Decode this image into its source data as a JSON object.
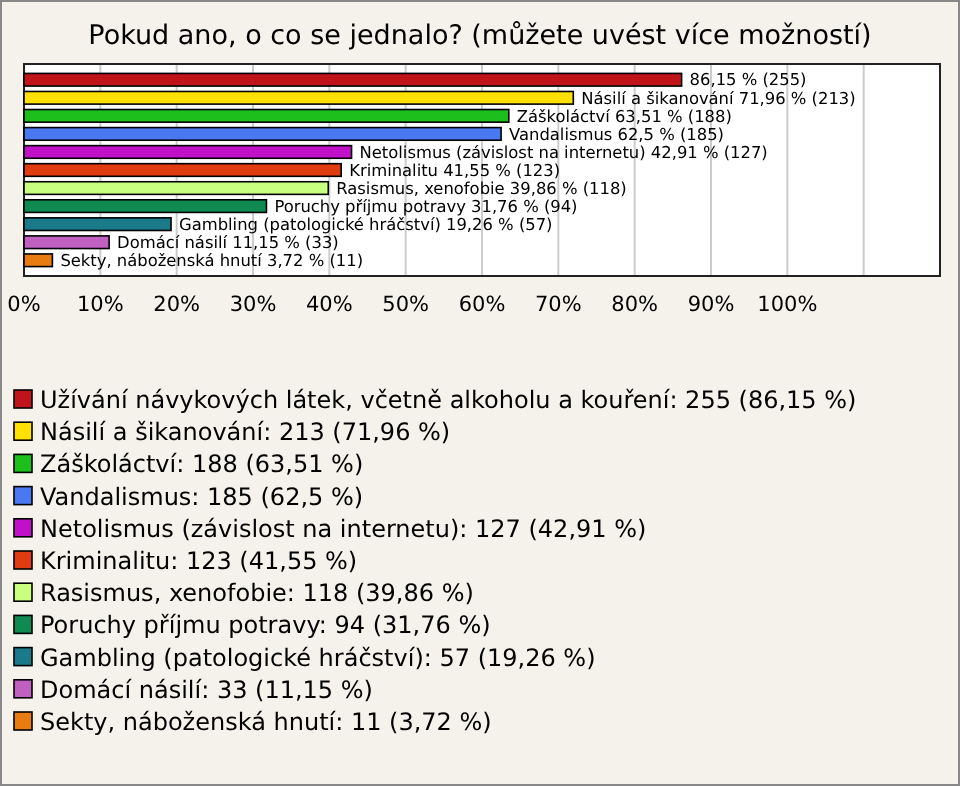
{
  "chart_data": {
    "type": "bar",
    "orientation": "horizontal",
    "stacked": true,
    "title": "Pokud ano, o co se jednalo? (můžete uvést více možností)",
    "categories": [
      null,
      null,
      null,
      null,
      null,
      null,
      null,
      null,
      null,
      null,
      null
    ],
    "series": [
      {
        "name": "Užívání návykových látek, včetně alkoholu a kouření: 255 (86,15 %)",
        "color": "#c0141a",
        "values": [
          86.15,
          null,
          null,
          null,
          null,
          null,
          null,
          null,
          null,
          null,
          null
        ],
        "value_labels": [
          "86,15 % (255)",
          null,
          null,
          null,
          null,
          null,
          null,
          null,
          null,
          null,
          null
        ]
      },
      {
        "name": "Násilí a šikanování: 213 (71,96 %)",
        "color": "#ffe000",
        "values": [
          null,
          71.96,
          null,
          null,
          null,
          null,
          null,
          null,
          null,
          null,
          null
        ],
        "value_labels": [
          null,
          "Násilí a šikanování 71,96 % (213)",
          null,
          null,
          null,
          null,
          null,
          null,
          null,
          null,
          null
        ]
      },
      {
        "name": "Záškoláctví: 188 (63,51 %)",
        "color": "#1dbf1d",
        "values": [
          null,
          null,
          63.51,
          null,
          null,
          null,
          null,
          null,
          null,
          null,
          null
        ],
        "value_labels": [
          null,
          null,
          "Záškoláctví 63,51 % (188)",
          null,
          null,
          null,
          null,
          null,
          null,
          null,
          null
        ]
      },
      {
        "name": "Vandalismus: 185 (62,5 %)",
        "color": "#4a78f0",
        "values": [
          null,
          null,
          null,
          62.5,
          null,
          null,
          null,
          null,
          null,
          null,
          null
        ],
        "value_labels": [
          null,
          null,
          null,
          "Vandalismus 62,5 % (185)",
          null,
          null,
          null,
          null,
          null,
          null,
          null
        ]
      },
      {
        "name": "Netolismus (závislost na internetu): 127 (42,91 %)",
        "color": "#c010c8",
        "values": [
          null,
          null,
          null,
          null,
          42.91,
          null,
          null,
          null,
          null,
          null,
          null
        ],
        "value_labels": [
          null,
          null,
          null,
          null,
          "Netolismus (závislost na internetu) 42,91 % (127)",
          null,
          null,
          null,
          null,
          null,
          null
        ]
      },
      {
        "name": "Kriminalitu: 123 (41,55 %)",
        "color": "#e03c10",
        "values": [
          null,
          null,
          null,
          null,
          null,
          41.55,
          null,
          null,
          null,
          null,
          null
        ],
        "value_labels": [
          null,
          null,
          null,
          null,
          null,
          "Kriminalitu 41,55 % (123)",
          null,
          null,
          null,
          null,
          null
        ]
      },
      {
        "name": "Rasismus, xenofobie: 118 (39,86 %)",
        "color": "#c8ff80",
        "values": [
          null,
          null,
          null,
          null,
          null,
          null,
          39.86,
          null,
          null,
          null,
          null
        ],
        "value_labels": [
          null,
          null,
          null,
          null,
          null,
          null,
          "Rasismus, xenofobie 39,86 % (118)",
          null,
          null,
          null,
          null
        ]
      },
      {
        "name": "Poruchy příjmu potravy: 94 (31,76 %)",
        "color": "#108a50",
        "values": [
          null,
          null,
          null,
          null,
          null,
          null,
          null,
          31.76,
          null,
          null,
          null
        ],
        "value_labels": [
          null,
          null,
          null,
          null,
          null,
          null,
          null,
          "Poruchy příjmu potravy 31,76 % (94)",
          null,
          null,
          null
        ]
      },
      {
        "name": "Gambling (patologické hráčství): 57 (19,26 %)",
        "color": "#1a7a8a",
        "values": [
          null,
          null,
          null,
          null,
          null,
          null,
          null,
          null,
          19.26,
          null,
          null
        ],
        "value_labels": [
          null,
          null,
          null,
          null,
          null,
          null,
          null,
          null,
          "Gambling (patologické hráčství) 19,26 % (57)",
          null,
          null
        ]
      },
      {
        "name": "Domácí násilí: 33 (11,15 %)",
        "color": "#c060c0",
        "values": [
          null,
          null,
          null,
          null,
          null,
          null,
          null,
          null,
          null,
          11.15,
          null
        ],
        "value_labels": [
          null,
          null,
          null,
          null,
          null,
          null,
          null,
          null,
          null,
          "Domácí násilí 11,15 % (33)",
          null
        ]
      },
      {
        "name": "Sekty, náboženská hnutí: 11 (3,72 %)",
        "color": "#e87c10",
        "values": [
          null,
          null,
          null,
          null,
          null,
          null,
          null,
          null,
          null,
          null,
          3.72
        ],
        "value_labels": [
          null,
          null,
          null,
          null,
          null,
          null,
          null,
          null,
          null,
          null,
          "Sekty, náboženská hnutí 3,72 % (11)"
        ]
      }
    ],
    "xlim": [
      0,
      120
    ],
    "xticks": [
      {
        "value": 0,
        "label": "0%"
      },
      {
        "value": 10,
        "label": "10%"
      },
      {
        "value": 20,
        "label": "20%"
      },
      {
        "value": 30,
        "label": "30%"
      },
      {
        "value": 40,
        "label": "40%"
      },
      {
        "value": 50,
        "label": "50%"
      },
      {
        "value": 60,
        "label": "60%"
      },
      {
        "value": 70,
        "label": "70%"
      },
      {
        "value": 80,
        "label": "80%"
      },
      {
        "value": 90,
        "label": "90%"
      },
      {
        "value": 100,
        "label": "100%"
      },
      {
        "value": 110,
        "label": null
      },
      {
        "value": 120,
        "label": null
      }
    ],
    "grid": "x",
    "legend": "bottom",
    "tick_labels": "x"
  }
}
